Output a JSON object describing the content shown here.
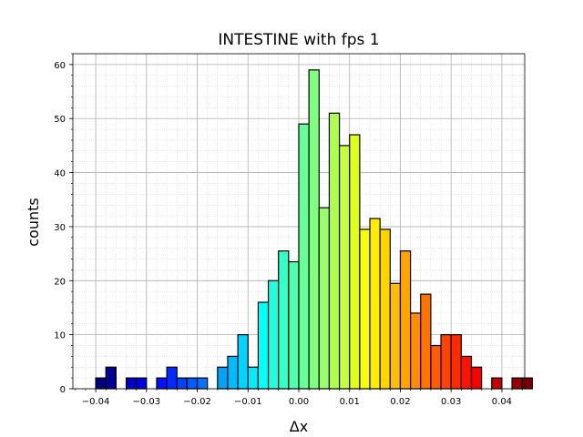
{
  "chart_data": {
    "type": "bar",
    "title": "INTESTINE with fps 1",
    "xlabel": "Δx",
    "ylabel": "counts",
    "xlim": [
      -0.0445,
      0.0445
    ],
    "ylim": [
      0,
      62
    ],
    "grid": true,
    "minor_grid": true,
    "colormap": "jet",
    "bin_width": 0.002,
    "x_ticks": [
      -0.04,
      -0.03,
      -0.02,
      -0.01,
      0.0,
      0.01,
      0.02,
      0.03,
      0.04
    ],
    "x_tick_labels": [
      "−0.04",
      "−0.03",
      "−0.02",
      "−0.01",
      "0.00",
      "0.01",
      "0.02",
      "0.03",
      "0.04"
    ],
    "y_ticks": [
      0,
      10,
      20,
      30,
      40,
      50,
      60
    ],
    "y_tick_labels": [
      "0",
      "10",
      "20",
      "30",
      "40",
      "50",
      "60"
    ],
    "bins": [
      {
        "x": -0.04,
        "count": 2
      },
      {
        "x": -0.038,
        "count": 4
      },
      {
        "x": -0.036,
        "count": 0
      },
      {
        "x": -0.034,
        "count": 2
      },
      {
        "x": -0.032,
        "count": 2
      },
      {
        "x": -0.03,
        "count": 0
      },
      {
        "x": -0.028,
        "count": 2
      },
      {
        "x": -0.026,
        "count": 4
      },
      {
        "x": -0.024,
        "count": 2
      },
      {
        "x": -0.022,
        "count": 2
      },
      {
        "x": -0.02,
        "count": 2
      },
      {
        "x": -0.018,
        "count": 0
      },
      {
        "x": -0.016,
        "count": 4
      },
      {
        "x": -0.014,
        "count": 6
      },
      {
        "x": -0.012,
        "count": 10
      },
      {
        "x": -0.01,
        "count": 4
      },
      {
        "x": -0.008,
        "count": 16
      },
      {
        "x": -0.006,
        "count": 20
      },
      {
        "x": -0.004,
        "count": 25.5
      },
      {
        "x": -0.002,
        "count": 23.5
      },
      {
        "x": 0.0,
        "count": 49
      },
      {
        "x": 0.002,
        "count": 59
      },
      {
        "x": 0.004,
        "count": 33.5
      },
      {
        "x": 0.006,
        "count": 51
      },
      {
        "x": 0.008,
        "count": 45
      },
      {
        "x": 0.01,
        "count": 47
      },
      {
        "x": 0.012,
        "count": 29.5
      },
      {
        "x": 0.014,
        "count": 31.5
      },
      {
        "x": 0.016,
        "count": 29.5
      },
      {
        "x": 0.018,
        "count": 19.5
      },
      {
        "x": 0.02,
        "count": 25.5
      },
      {
        "x": 0.022,
        "count": 14
      },
      {
        "x": 0.024,
        "count": 17.5
      },
      {
        "x": 0.026,
        "count": 8
      },
      {
        "x": 0.028,
        "count": 10
      },
      {
        "x": 0.03,
        "count": 10
      },
      {
        "x": 0.032,
        "count": 6
      },
      {
        "x": 0.034,
        "count": 4
      },
      {
        "x": 0.036,
        "count": 0
      },
      {
        "x": 0.038,
        "count": 2
      },
      {
        "x": 0.04,
        "count": 0
      },
      {
        "x": 0.042,
        "count": 2
      },
      {
        "x": 0.044,
        "count": 2
      }
    ]
  }
}
